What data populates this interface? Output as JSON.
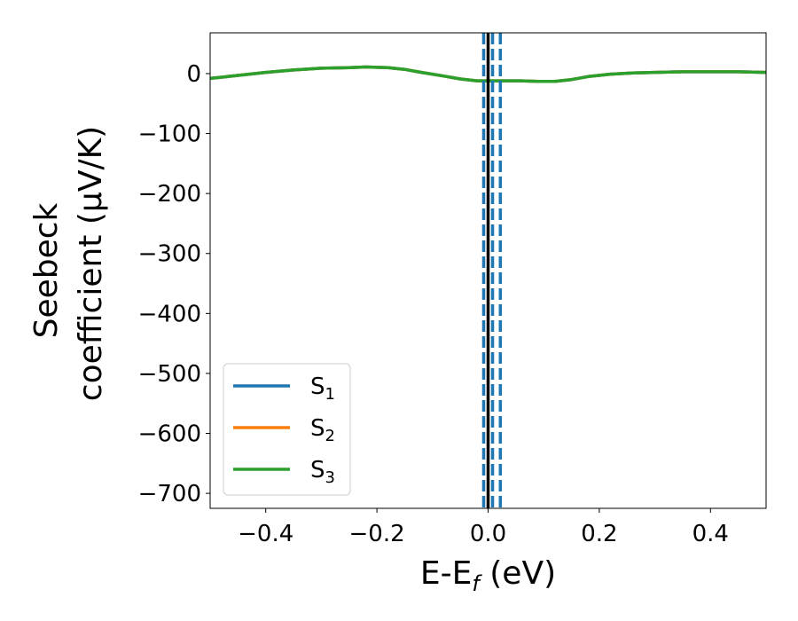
{
  "chart_data": {
    "type": "line",
    "xlabel": "E-E_f (eV)",
    "xlabel_parts": {
      "main": "E-E",
      "sub": "f",
      "unit": " (eV)"
    },
    "ylabel_line1": "Seebeck",
    "ylabel_line2": "coefficient  (μV/K)",
    "xlim": [
      -0.5,
      0.5
    ],
    "ylim": [
      -725,
      68
    ],
    "xticks": [
      -0.4,
      -0.2,
      0.0,
      0.2,
      0.4
    ],
    "xtick_labels": [
      "−0.4",
      "−0.2",
      "0.0",
      "0.2",
      "0.4"
    ],
    "yticks": [
      0,
      -100,
      -200,
      -300,
      -400,
      -500,
      -600,
      -700
    ],
    "ytick_labels": [
      "0",
      "−100",
      "−200",
      "−300",
      "−400",
      "−500",
      "−600",
      "−700"
    ],
    "grid": false,
    "legend_position": "lower-left",
    "x": [
      -0.5,
      -0.45,
      -0.4,
      -0.35,
      -0.3,
      -0.25,
      -0.22,
      -0.18,
      -0.15,
      -0.12,
      -0.08,
      -0.05,
      -0.02,
      0.0,
      0.03,
      0.06,
      0.09,
      0.12,
      0.15,
      0.18,
      0.22,
      0.26,
      0.3,
      0.35,
      0.4,
      0.45,
      0.5
    ],
    "series": [
      {
        "name": "S",
        "sub": "1",
        "color": "#1f77b4",
        "values": [
          -8,
          -3,
          2,
          6,
          9,
          10,
          11,
          10,
          7,
          2,
          -4,
          -9,
          -12,
          -12,
          -12,
          -12,
          -13,
          -13,
          -10,
          -5,
          -1,
          1,
          2,
          3,
          3,
          3,
          2
        ]
      },
      {
        "name": "S",
        "sub": "2",
        "color": "#ff7f0e",
        "values": [
          -8,
          -3,
          2,
          6,
          9,
          10,
          11,
          10,
          7,
          2,
          -4,
          -9,
          -12,
          -12,
          -12,
          -12,
          -13,
          -13,
          -10,
          -5,
          -1,
          1,
          2,
          3,
          3,
          3,
          2
        ]
      },
      {
        "name": "S",
        "sub": "3",
        "color": "#2ca02c",
        "values": [
          -8,
          -3,
          2,
          6,
          9,
          10,
          11,
          10,
          7,
          2,
          -4,
          -9,
          -12,
          -12,
          -12,
          -12,
          -13,
          -13,
          -10,
          -5,
          -1,
          1,
          2,
          3,
          3,
          3,
          2
        ]
      }
    ],
    "vlines": [
      {
        "x": 0.0,
        "color": "#000000",
        "style": "solid"
      },
      {
        "x": -0.008,
        "color": "#1f77b4",
        "style": "dashed"
      },
      {
        "x": 0.008,
        "color": "#1f77b4",
        "style": "dashed"
      },
      {
        "x": 0.022,
        "color": "#1f77b4",
        "style": "dashed"
      }
    ]
  }
}
